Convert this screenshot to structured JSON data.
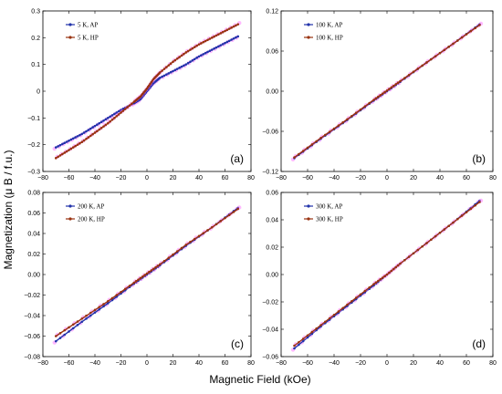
{
  "figure": {
    "ylabel": "Magnetization (μ B / f.u.)",
    "xlabel": "Magnetic Field (kOe)",
    "colors": {
      "AP": "#2233aa",
      "HP": "#993311",
      "scatter": "#ff66ff"
    }
  },
  "chart_data": [
    {
      "type": "line",
      "panel_label": "(a)",
      "xlim": [
        -80,
        80
      ],
      "ylim": [
        -0.3,
        0.3
      ],
      "xticks": [
        "−80",
        "−60",
        "−40",
        "−20",
        "0",
        "20",
        "40",
        "60",
        "80"
      ],
      "yticks": [
        "−0.3",
        "−0.2",
        "−0.1",
        "0",
        "0.1",
        "0.2",
        "0.3"
      ],
      "legend_position": "top-left",
      "series": [
        {
          "name": "5 K, AP",
          "color": "#2233aa",
          "x": [
            -70,
            -60,
            -50,
            -40,
            -30,
            -20,
            -10,
            -5,
            0,
            5,
            10,
            20,
            30,
            40,
            50,
            60,
            70
          ],
          "y": [
            -0.21,
            -0.185,
            -0.16,
            -0.13,
            -0.1,
            -0.07,
            -0.045,
            -0.03,
            0.0,
            0.03,
            0.05,
            0.075,
            0.1,
            0.13,
            0.155,
            0.18,
            0.205
          ]
        },
        {
          "name": "5 K, HP",
          "color": "#993311",
          "x": [
            -70,
            -60,
            -50,
            -40,
            -30,
            -20,
            -10,
            -5,
            0,
            5,
            10,
            20,
            30,
            40,
            50,
            60,
            70
          ],
          "y": [
            -0.25,
            -0.22,
            -0.19,
            -0.155,
            -0.12,
            -0.08,
            -0.04,
            -0.02,
            0.01,
            0.045,
            0.07,
            0.11,
            0.145,
            0.175,
            0.2,
            0.225,
            0.25
          ]
        }
      ]
    },
    {
      "type": "line",
      "panel_label": "(b)",
      "xlim": [
        -80,
        80
      ],
      "ylim": [
        -0.12,
        0.12
      ],
      "xticks": [
        "−80",
        "−60",
        "−40",
        "−20",
        "0",
        "20",
        "40",
        "60",
        "80"
      ],
      "yticks": [
        "−0.12",
        "−0.06",
        "0.00",
        "0.06",
        "0.12"
      ],
      "yticks_values": [
        -0.12,
        -0.06,
        0,
        0.06,
        0.12
      ],
      "legend_position": "top-left",
      "series": [
        {
          "name": "100 K, AP",
          "color": "#2233aa",
          "x": [
            -70,
            -50,
            -30,
            -10,
            0,
            10,
            30,
            50,
            70
          ],
          "y": [
            -0.1,
            -0.071,
            -0.043,
            -0.014,
            0.0,
            0.014,
            0.043,
            0.071,
            0.1
          ]
        },
        {
          "name": "100 K, HP",
          "color": "#993311",
          "x": [
            -70,
            -50,
            -30,
            -10,
            0,
            10,
            30,
            50,
            70
          ],
          "y": [
            -0.099,
            -0.07,
            -0.042,
            -0.013,
            0.001,
            0.015,
            0.043,
            0.071,
            0.099
          ]
        }
      ]
    },
    {
      "type": "line",
      "panel_label": "(c)",
      "xlim": [
        -80,
        80
      ],
      "ylim": [
        -0.08,
        0.08
      ],
      "xticks": [
        "−80",
        "−60",
        "−40",
        "−20",
        "0",
        "20",
        "40",
        "60",
        "80"
      ],
      "yticks": [
        "−0.08",
        "−0.06",
        "−0.04",
        "−0.02",
        "0.00",
        "0.02",
        "0.04",
        "0.06",
        "0.08"
      ],
      "yticks_values": [
        -0.08,
        -0.06,
        -0.04,
        -0.02,
        0,
        0.02,
        0.04,
        0.06,
        0.08
      ],
      "legend_position": "top-left",
      "series": [
        {
          "name": "200 K, AP",
          "color": "#2233aa",
          "x": [
            -70,
            -50,
            -30,
            -10,
            0,
            10,
            30,
            50,
            70
          ],
          "y": [
            -0.065,
            -0.046,
            -0.028,
            -0.009,
            0.0,
            0.009,
            0.028,
            0.046,
            0.065
          ]
        },
        {
          "name": "200 K, HP",
          "color": "#993311",
          "x": [
            -70,
            -50,
            -30,
            -10,
            0,
            10,
            30,
            50,
            70
          ],
          "y": [
            -0.06,
            -0.043,
            -0.026,
            -0.008,
            0.001,
            0.01,
            0.029,
            0.046,
            0.064
          ]
        }
      ]
    },
    {
      "type": "line",
      "panel_label": "(d)",
      "xlim": [
        -80,
        80
      ],
      "ylim": [
        -0.06,
        0.06
      ],
      "xticks": [
        "−80",
        "−60",
        "−40",
        "−20",
        "0",
        "20",
        "40",
        "60",
        "80"
      ],
      "yticks": [
        "−0.06",
        "−0.04",
        "−0.02",
        "0.00",
        "0.02",
        "0.04",
        "0.06"
      ],
      "yticks_values": [
        -0.06,
        -0.04,
        -0.02,
        0,
        0.02,
        0.04,
        0.06
      ],
      "legend_position": "top-left",
      "series": [
        {
          "name": "300 K, AP",
          "color": "#2233aa",
          "x": [
            -70,
            -50,
            -30,
            -10,
            0,
            10,
            30,
            50,
            70
          ],
          "y": [
            -0.054,
            -0.038,
            -0.023,
            -0.008,
            0.0,
            0.008,
            0.023,
            0.038,
            0.054
          ]
        },
        {
          "name": "300 K, HP",
          "color": "#993311",
          "x": [
            -70,
            -50,
            -30,
            -10,
            0,
            10,
            30,
            50,
            70
          ],
          "y": [
            -0.052,
            -0.037,
            -0.022,
            -0.007,
            0.0,
            0.008,
            0.023,
            0.038,
            0.053
          ]
        }
      ]
    }
  ]
}
